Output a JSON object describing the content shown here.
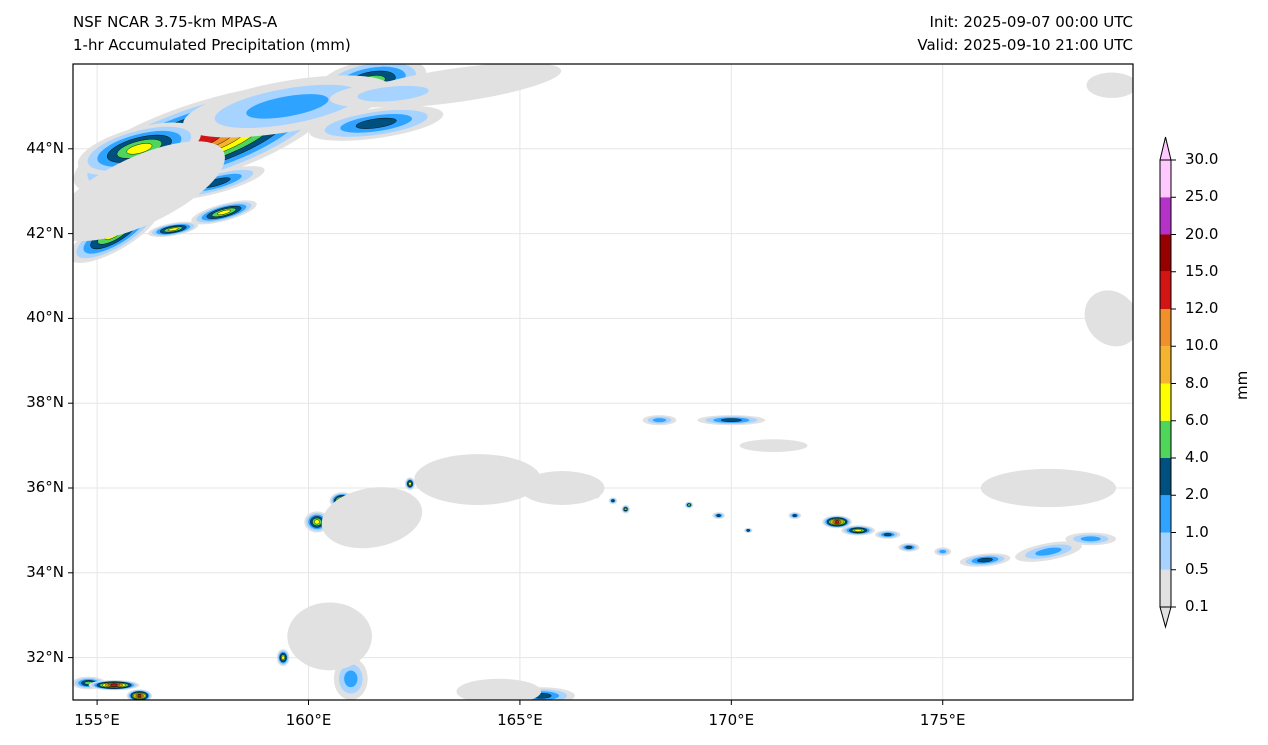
{
  "header": {
    "model": "NSF NCAR 3.75-km MPAS-A",
    "field": "1-hr Accumulated Precipitation (mm)",
    "init": "Init: 2025-09-07 00:00 UTC",
    "valid": "Valid: 2025-09-10 21:00 UTC"
  },
  "map": {
    "lon_range": [
      154.43,
      179.5
    ],
    "lat_range": [
      31.0,
      46.0
    ],
    "lat_labels": [
      {
        "v": 44,
        "t": "44°N"
      },
      {
        "v": 42,
        "t": "42°N"
      },
      {
        "v": 40,
        "t": "40°N"
      },
      {
        "v": 38,
        "t": "38°N"
      },
      {
        "v": 36,
        "t": "36°N"
      },
      {
        "v": 34,
        "t": "34°N"
      },
      {
        "v": 32,
        "t": "32°N"
      }
    ],
    "lon_labels": [
      {
        "v": 155,
        "t": "155°E"
      },
      {
        "v": 160,
        "t": "160°E"
      },
      {
        "v": 165,
        "t": "165°E"
      },
      {
        "v": 170,
        "t": "170°E"
      },
      {
        "v": 175,
        "t": "175°E"
      }
    ]
  },
  "colorbar": {
    "unit": "mm",
    "levels": [
      "0.1",
      "0.5",
      "1.0",
      "2.0",
      "4.0",
      "6.0",
      "8.0",
      "10.0",
      "12.0",
      "15.0",
      "20.0",
      "25.0",
      "30.0"
    ],
    "colors": [
      "#e1e1e1",
      "#a6d3ff",
      "#2ea3ff",
      "#00507f",
      "#4fd65a",
      "#ffff00",
      "#f5b42d",
      "#f0902a",
      "#d21414",
      "#960000",
      "#b432c8",
      "#ffc8ff"
    ]
  }
}
